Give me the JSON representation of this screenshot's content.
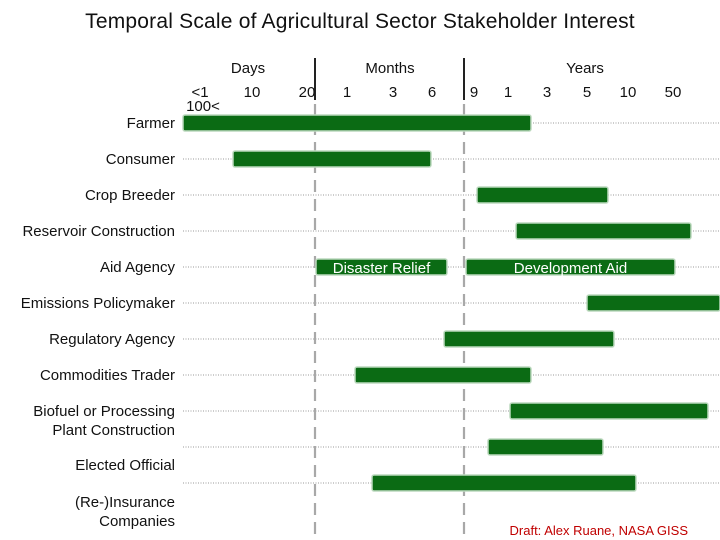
{
  "chart_data": {
    "type": "bar",
    "title": "Temporal Scale of Agricultural Sector Stakeholder Interest",
    "time_axis": {
      "groups": [
        "Days",
        "Months",
        "Years"
      ],
      "ticks": [
        "<1",
        "10",
        "20",
        "1",
        "3",
        "6",
        "9",
        "1",
        "3",
        "5",
        "10",
        "50",
        "100<"
      ]
    },
    "categories": [
      "Farmer",
      "Consumer",
      "Crop Breeder",
      "Reservoir Construction",
      "Aid Agency",
      "Emissions Policymaker",
      "Regulatory Agency",
      "Commodities Trader",
      "Biofuel or Processing Plant Construction",
      "Elected Official",
      "(Re-)Insurance Companies"
    ],
    "bars": [
      {
        "category": "Farmer",
        "start": "<1 day",
        "end": "1 year"
      },
      {
        "category": "Consumer",
        "start": "5 days",
        "end": "8 months"
      },
      {
        "category": "Crop Breeder",
        "start": "9 months",
        "end": "6 years"
      },
      {
        "category": "Reservoir Construction",
        "start": "1 year",
        "end": "50 years"
      },
      {
        "category": "Aid Agency",
        "start": "1 month",
        "end": "8 months",
        "label": "Disaster Relief"
      },
      {
        "category": "Aid Agency",
        "start": "9 months",
        "end": "30 years",
        "label": "Development Aid"
      },
      {
        "category": "Emissions Policymaker",
        "start": "5 years",
        "end": "100+ years"
      },
      {
        "category": "Regulatory Agency",
        "start": "7 months",
        "end": "6 years"
      },
      {
        "category": "Commodities Trader",
        "start": "1 month",
        "end": "1 year"
      },
      {
        "category": "Biofuel or Processing Plant Construction",
        "start": "1 year",
        "end": "90 years"
      },
      {
        "category": "Elected Official",
        "start": "10 months",
        "end": "5 years"
      },
      {
        "category": "(Re-)Insurance Companies",
        "start": "2 months",
        "end": "10 years"
      }
    ],
    "grid": true,
    "bar_color": "#0b6b14"
  },
  "credit": "Draft: Alex Ruane, NASA GISS"
}
